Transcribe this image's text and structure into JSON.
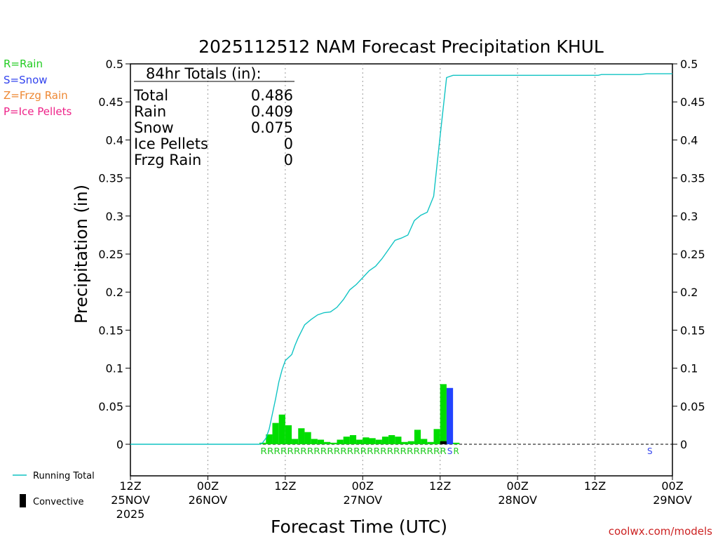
{
  "chart_data": {
    "type": "bar+line",
    "title": "2025112512 NAM Forecast Precipitation KHUL",
    "xlabel": "Forecast Time (UTC)",
    "ylabel": "Precipitation (in)",
    "ylim": [
      -0.04,
      0.5
    ],
    "xlim_hours": [
      0,
      84
    ],
    "y_ticks": [
      "0",
      "0.05",
      "0.1",
      "0.15",
      "0.2",
      "0.25",
      "0.3",
      "0.35",
      "0.4",
      "0.45",
      "0.5"
    ],
    "y_tick_values": [
      0,
      0.05,
      0.1,
      0.15,
      0.2,
      0.25,
      0.3,
      0.35,
      0.4,
      0.45,
      0.5
    ],
    "x_ticks": [
      {
        "hour": 0,
        "time": "12Z",
        "date": "25NOV",
        "year": "2025"
      },
      {
        "hour": 12,
        "time": "00Z",
        "date": "26NOV",
        "year": ""
      },
      {
        "hour": 24,
        "time": "12Z",
        "date": "",
        "year": ""
      },
      {
        "hour": 36,
        "time": "00Z",
        "date": "27NOV",
        "year": ""
      },
      {
        "hour": 48,
        "time": "12Z",
        "date": "",
        "year": ""
      },
      {
        "hour": 60,
        "time": "00Z",
        "date": "28NOV",
        "year": ""
      },
      {
        "hour": 72,
        "time": "12Z",
        "date": "",
        "year": ""
      },
      {
        "hour": 84,
        "time": "00Z",
        "date": "29NOV",
        "year": ""
      }
    ],
    "grid": "vertical dotted",
    "bars": {
      "rain": {
        "color": "#00dd00",
        "data": [
          [
            20.5,
            0.002
          ],
          [
            21.5,
            0.013
          ],
          [
            22.5,
            0.028
          ],
          [
            23.5,
            0.039
          ],
          [
            24.5,
            0.025
          ],
          [
            25.5,
            0.007
          ],
          [
            26.5,
            0.021
          ],
          [
            27.5,
            0.016
          ],
          [
            28.5,
            0.007
          ],
          [
            29.5,
            0.006
          ],
          [
            30.5,
            0.003
          ],
          [
            31.5,
            0.002
          ],
          [
            32.5,
            0.006
          ],
          [
            33.5,
            0.01
          ],
          [
            34.5,
            0.012
          ],
          [
            35.5,
            0.006
          ],
          [
            36.5,
            0.009
          ],
          [
            37.5,
            0.008
          ],
          [
            38.5,
            0.006
          ],
          [
            39.5,
            0.01
          ],
          [
            40.5,
            0.012
          ],
          [
            41.5,
            0.01
          ],
          [
            42.5,
            0.003
          ],
          [
            43.5,
            0.004
          ],
          [
            44.5,
            0.019
          ],
          [
            45.5,
            0.007
          ],
          [
            46.5,
            0.003
          ],
          [
            47.5,
            0.02
          ],
          [
            48.5,
            0.079
          ],
          [
            50.5,
            0.002
          ]
        ]
      },
      "snow": {
        "color": "#2244ff",
        "data": [
          [
            49.5,
            0.074
          ]
        ]
      },
      "convective": {
        "color": "#000000",
        "data": [
          [
            48.5,
            0.004
          ]
        ]
      }
    },
    "running_total": {
      "color": "#11c4c4",
      "points": [
        [
          0,
          0
        ],
        [
          20,
          0
        ],
        [
          20.5,
          0.002
        ],
        [
          21,
          0.008
        ],
        [
          21.5,
          0.02
        ],
        [
          22,
          0.04
        ],
        [
          22.5,
          0.06
        ],
        [
          23,
          0.082
        ],
        [
          23.5,
          0.098
        ],
        [
          24,
          0.11
        ],
        [
          25,
          0.118
        ],
        [
          25.5,
          0.13
        ],
        [
          26,
          0.14
        ],
        [
          27,
          0.157
        ],
        [
          28,
          0.164
        ],
        [
          29,
          0.17
        ],
        [
          30,
          0.173
        ],
        [
          31,
          0.174
        ],
        [
          32,
          0.18
        ],
        [
          33,
          0.19
        ],
        [
          34,
          0.203
        ],
        [
          35,
          0.21
        ],
        [
          36,
          0.219
        ],
        [
          37,
          0.228
        ],
        [
          38,
          0.234
        ],
        [
          39,
          0.244
        ],
        [
          40,
          0.256
        ],
        [
          41,
          0.268
        ],
        [
          42,
          0.271
        ],
        [
          43,
          0.275
        ],
        [
          44,
          0.294
        ],
        [
          45,
          0.301
        ],
        [
          46,
          0.305
        ],
        [
          47,
          0.326
        ],
        [
          48,
          0.405
        ],
        [
          49,
          0.482
        ],
        [
          50,
          0.485
        ],
        [
          72.5,
          0.485
        ],
        [
          73,
          0.486
        ],
        [
          79,
          0.486
        ],
        [
          80,
          0.487
        ],
        [
          84,
          0.487
        ]
      ]
    },
    "type_codes": {
      "rain_row": "RRRRRRRRRRRRRRRRRRRRRRRRRRRR",
      "rain_row_start_hour": 20.8,
      "rain_row_end_hour": 49.0,
      "extra": [
        {
          "hour": 49.5,
          "code": "S",
          "kind": "snow"
        },
        {
          "hour": 50.5,
          "code": "R",
          "kind": "rain"
        },
        {
          "hour": 80.5,
          "code": "S",
          "kind": "snow"
        }
      ]
    },
    "totals_box": {
      "heading": "84hr Totals (in):",
      "rows": [
        {
          "label": "Total",
          "value": "0.486"
        },
        {
          "label": "Rain",
          "value": "0.409"
        },
        {
          "label": "Snow",
          "value": "0.075"
        },
        {
          "label": "Ice Pellets",
          "value": "0"
        },
        {
          "label": "Frzg Rain",
          "value": "0"
        }
      ]
    },
    "legend_types": [
      {
        "text": "R=Rain",
        "color": "#22cc22"
      },
      {
        "text": "S=Snow",
        "color": "#3344ee"
      },
      {
        "text": "Z=Frzg Rain",
        "color": "#ee8833"
      },
      {
        "text": "P=Ice Pellets",
        "color": "#ee2288"
      }
    ],
    "legend_bottom": {
      "running_total": "Running Total",
      "convective": "Convective"
    },
    "credit": "coolwx.com/models"
  }
}
